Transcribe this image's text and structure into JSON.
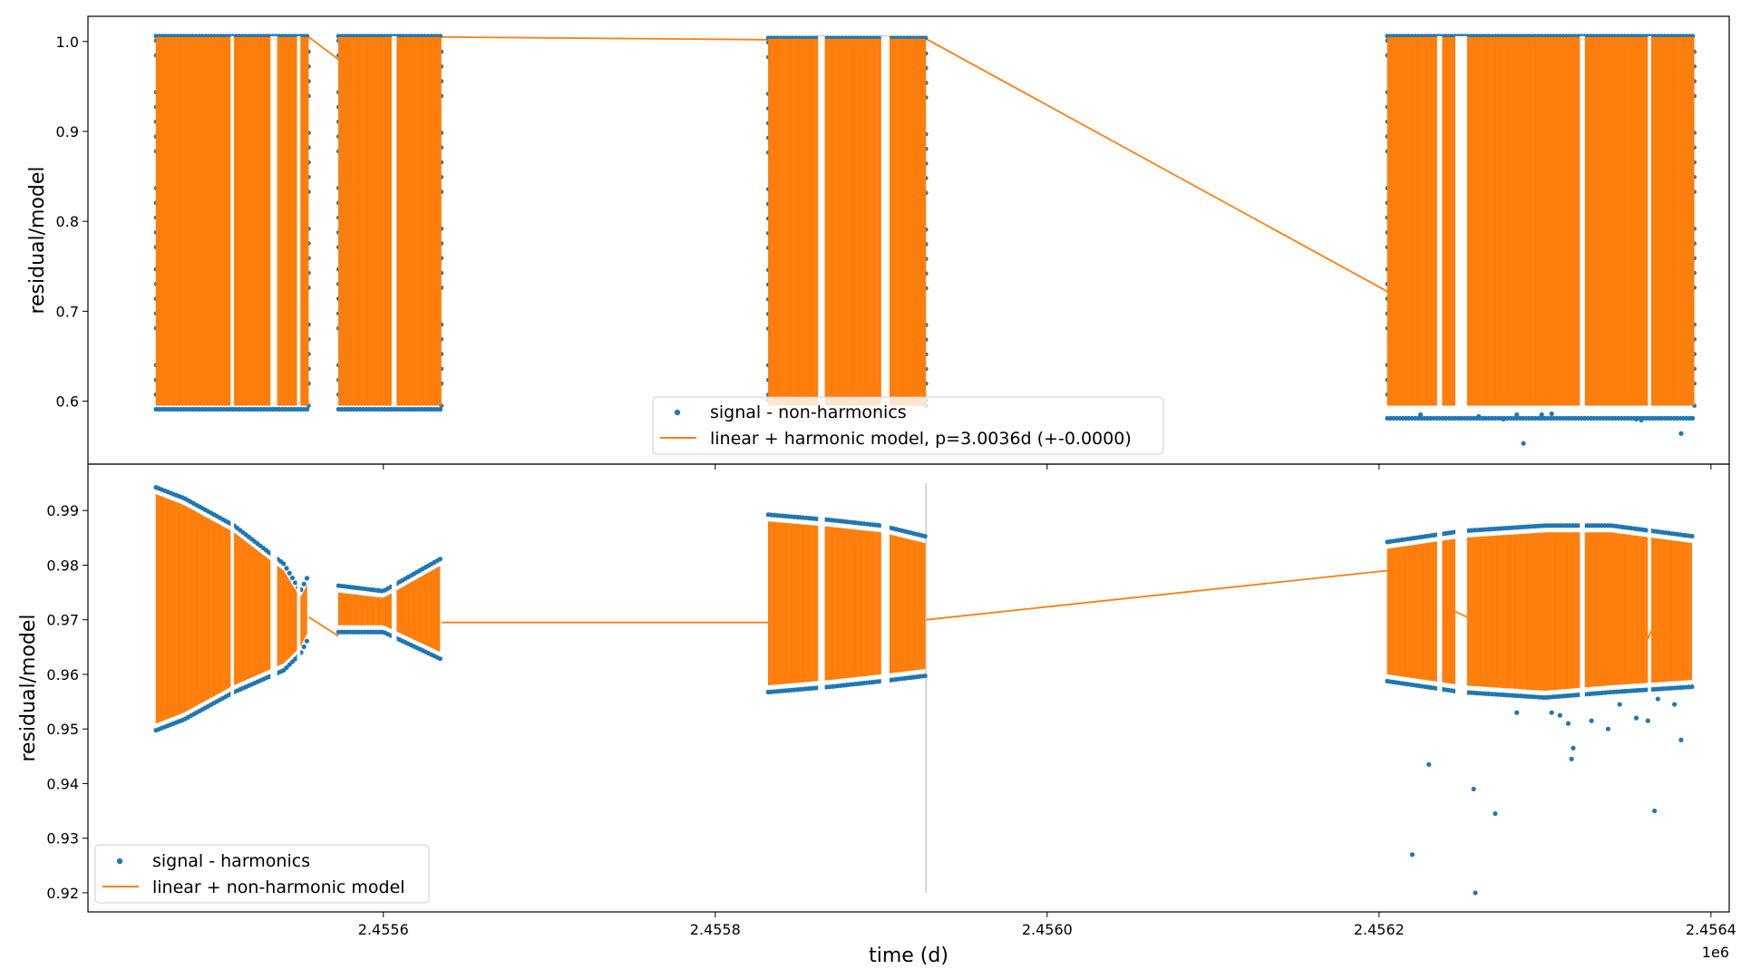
{
  "chart_data": [
    {
      "type": "scatter",
      "panel": "top",
      "xlabel": "",
      "ylabel": "residual/model",
      "ylim": [
        0.53,
        1.028
      ],
      "yticks": [
        {
          "value": 0.6,
          "label": "0.6"
        },
        {
          "value": 0.7,
          "label": "0.7"
        },
        {
          "value": 0.8,
          "label": "0.8"
        },
        {
          "value": 0.9,
          "label": "0.9"
        },
        {
          "value": 1.0,
          "label": "1.0"
        }
      ],
      "series": [
        {
          "name": "signal - non-harmonics",
          "kind": "scatter",
          "color": "#1f77b4"
        },
        {
          "name": "linear + harmonic model, p=3.0036d (+-0.0000)",
          "kind": "line",
          "color": "#ff7f0e"
        }
      ],
      "segments": [
        {
          "x0": 2455463,
          "x1": 2455555,
          "ymin": 0.595,
          "ymax": 1.005,
          "dmin": 0.59
        },
        {
          "x0": 2455573,
          "x1": 2455635,
          "ymin": 0.595,
          "ymax": 1.005,
          "dmin": 0.59
        },
        {
          "x0": 2455832,
          "x1": 2455927,
          "ymin": 0.595,
          "ymax": 1.003,
          "dmin": 0.6
        },
        {
          "x0": 2456205,
          "x1": 2456390,
          "ymin": 0.595,
          "ymax": 1.005,
          "dmin": 0.58
        }
      ],
      "connectors": [
        {
          "x": [
            2455555,
            2455573
          ],
          "y": [
            1.005,
            0.98
          ]
        },
        {
          "x": [
            2455635,
            2455832
          ],
          "y": [
            1.005,
            1.002
          ]
        },
        {
          "x": [
            2455927,
            2456205
          ],
          "y": [
            1.003,
            0.722
          ]
        }
      ],
      "outliers": [
        {
          "x": 2456225,
          "y": 0.585
        },
        {
          "x": 2456260,
          "y": 0.583
        },
        {
          "x": 2456275,
          "y": 0.58
        },
        {
          "x": 2456283,
          "y": 0.585
        },
        {
          "x": 2456287,
          "y": 0.553
        },
        {
          "x": 2456298,
          "y": 0.585
        },
        {
          "x": 2456355,
          "y": 0.58
        },
        {
          "x": 2456358,
          "y": 0.579
        },
        {
          "x": 2456382,
          "y": 0.564
        },
        {
          "x": 2456304,
          "y": 0.586
        }
      ],
      "legend_location": "lower center"
    },
    {
      "type": "scatter",
      "panel": "bottom",
      "xlabel": "time (d)",
      "ylabel": "residual/model",
      "xlim": [
        2455422,
        2456411
      ],
      "xticks": [
        {
          "value": 2455600,
          "label": "2.4556"
        },
        {
          "value": 2455800,
          "label": "2.4558"
        },
        {
          "value": 2456000,
          "label": "2.4560"
        },
        {
          "value": 2456200,
          "label": "2.4562"
        },
        {
          "value": 2456400,
          "label": "2.4564"
        }
      ],
      "x_offset_label": "1e6",
      "ylim": [
        0.9165,
        0.9985
      ],
      "yticks": [
        {
          "value": 0.92,
          "label": "0.92"
        },
        {
          "value": 0.93,
          "label": "0.93"
        },
        {
          "value": 0.94,
          "label": "0.94"
        },
        {
          "value": 0.95,
          "label": "0.95"
        },
        {
          "value": 0.96,
          "label": "0.96"
        },
        {
          "value": 0.97,
          "label": "0.97"
        },
        {
          "value": 0.98,
          "label": "0.98"
        },
        {
          "value": 0.99,
          "label": "0.99"
        }
      ],
      "series": [
        {
          "name": "signal - harmonics",
          "kind": "scatter",
          "color": "#1f77b4"
        },
        {
          "name": "linear + non-harmonic model",
          "kind": "line",
          "color": "#ff7f0e"
        }
      ],
      "envelopes": [
        {
          "x": [
            2455463,
            2455480,
            2455510,
            2455540,
            2455550,
            2455555
          ],
          "upper": [
            0.994,
            0.992,
            0.987,
            0.98,
            0.975,
            0.978
          ],
          "lower": [
            0.95,
            0.952,
            0.957,
            0.961,
            0.964,
            0.967
          ]
        },
        {
          "x": [
            2455573,
            2455600,
            2455635
          ],
          "upper": [
            0.976,
            0.975,
            0.981
          ],
          "lower": [
            0.968,
            0.968,
            0.963
          ]
        },
        {
          "x": [
            2455832,
            2455870,
            2455900,
            2455927
          ],
          "upper": [
            0.989,
            0.988,
            0.987,
            0.985
          ],
          "lower": [
            0.957,
            0.958,
            0.959,
            0.96
          ]
        },
        {
          "x": [
            2456205,
            2456250,
            2456300,
            2456340,
            2456390
          ],
          "upper": [
            0.984,
            0.986,
            0.987,
            0.987,
            0.985
          ],
          "lower": [
            0.959,
            0.957,
            0.956,
            0.957,
            0.958
          ]
        }
      ],
      "connectors": [
        {
          "x": [
            2455555,
            2455573
          ],
          "y": [
            0.9705,
            0.967
          ]
        },
        {
          "x": [
            2455635,
            2455832
          ],
          "y": [
            0.9695,
            0.9695
          ]
        },
        {
          "x": [
            2455927,
            2456205
          ],
          "y": [
            0.97,
            0.979
          ]
        }
      ],
      "vline": {
        "x": 2455927,
        "y0": 0.92,
        "y1": 0.995,
        "color": "#d3d3d3"
      },
      "outliers": [
        {
          "x": 2456220,
          "y": 0.927
        },
        {
          "x": 2456230,
          "y": 0.9435
        },
        {
          "x": 2456257,
          "y": 0.939
        },
        {
          "x": 2456258,
          "y": 0.92
        },
        {
          "x": 2456270,
          "y": 0.9345
        },
        {
          "x": 2456283,
          "y": 0.953
        },
        {
          "x": 2456304,
          "y": 0.953
        },
        {
          "x": 2456309,
          "y": 0.9525
        },
        {
          "x": 2456314,
          "y": 0.951
        },
        {
          "x": 2456316,
          "y": 0.9445
        },
        {
          "x": 2456317,
          "y": 0.9465
        },
        {
          "x": 2456328,
          "y": 0.9515
        },
        {
          "x": 2456338,
          "y": 0.95
        },
        {
          "x": 2456345,
          "y": 0.9545
        },
        {
          "x": 2456355,
          "y": 0.952
        },
        {
          "x": 2456362,
          "y": 0.9515
        },
        {
          "x": 2456366,
          "y": 0.935
        },
        {
          "x": 2456378,
          "y": 0.9545
        },
        {
          "x": 2456382,
          "y": 0.948
        },
        {
          "x": 2456368,
          "y": 0.9555
        }
      ],
      "legend_location": "lower left"
    }
  ]
}
